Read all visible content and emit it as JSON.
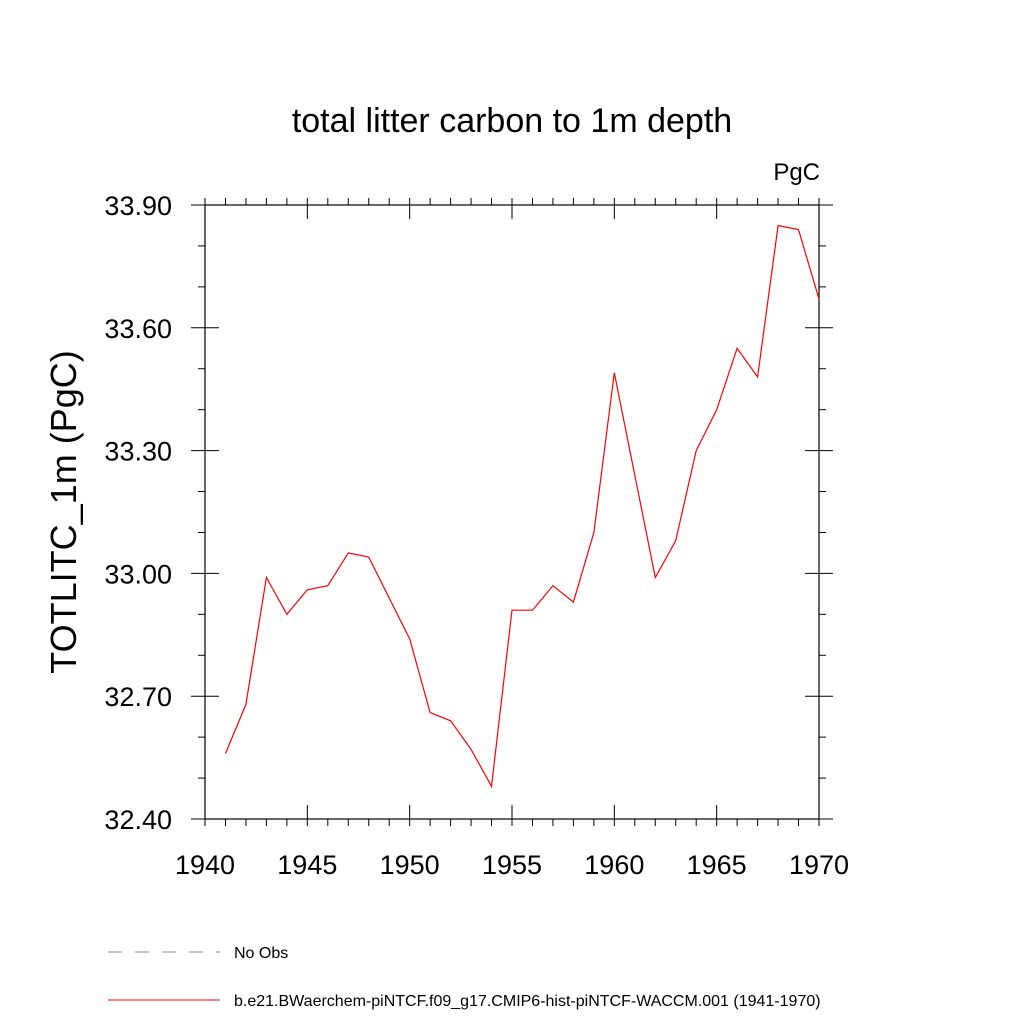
{
  "chart_data": {
    "type": "line",
    "title": "total litter carbon to 1m depth",
    "units_label": "PgC",
    "ylabel": "TOTLITC_1m  (PgC)",
    "xlabel": "",
    "xlim": [
      1940,
      1970
    ],
    "ylim": [
      32.4,
      33.9
    ],
    "x_ticks": [
      "1940",
      "1945",
      "1950",
      "1955",
      "1960",
      "1965",
      "1970"
    ],
    "y_ticks": [
      "32.40",
      "32.70",
      "33.00",
      "33.30",
      "33.60",
      "33.90"
    ],
    "legend_position": "bottom-left",
    "series": [
      {
        "name": "No Obs",
        "color": "#8080c0",
        "style": "dashed",
        "x": [],
        "values": []
      },
      {
        "name": "b.e21.BWaerchem-piNTCF.f09_g17.CMIP6-hist-piNTCF-WACCM.001 (1941-1970)",
        "color": "#ff0000",
        "style": "solid",
        "x": [
          1941,
          1942,
          1943,
          1944,
          1945,
          1946,
          1947,
          1948,
          1949,
          1950,
          1951,
          1952,
          1953,
          1954,
          1955,
          1956,
          1957,
          1958,
          1959,
          1960,
          1961,
          1962,
          1963,
          1964,
          1965,
          1966,
          1967,
          1968,
          1969,
          1970
        ],
        "values": [
          32.56,
          32.68,
          32.99,
          32.9,
          32.96,
          32.97,
          33.05,
          33.04,
          32.94,
          32.84,
          32.66,
          32.64,
          32.57,
          32.48,
          32.91,
          32.91,
          32.97,
          32.93,
          33.1,
          33.49,
          33.24,
          32.99,
          33.08,
          33.3,
          33.4,
          33.55,
          33.48,
          33.85,
          33.84,
          33.67
        ]
      }
    ]
  }
}
